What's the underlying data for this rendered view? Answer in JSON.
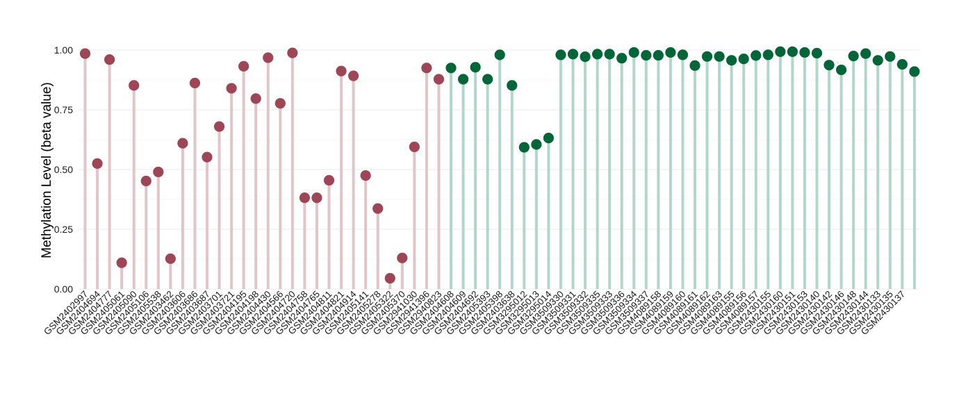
{
  "chart_data": {
    "type": "lollipop",
    "ylabel": "Methylation Level (beta value)",
    "ylim": [
      0,
      1
    ],
    "y_ticks": [
      "0.00",
      "0.25",
      "0.50",
      "0.75",
      "1.00"
    ],
    "y_tick_values": [
      0,
      0.25,
      0.5,
      0.75,
      1.0
    ],
    "grid": true,
    "colors": {
      "group_a_point": "#9e4656",
      "group_a_stem": "#e0c5ca",
      "group_b_point": "#036639",
      "group_b_stem": "#b3d6cb"
    },
    "points": [
      {
        "x": "GSM2402997",
        "y": 0.985,
        "group": "a"
      },
      {
        "x": "GSM2404694",
        "y": 0.525,
        "group": "a"
      },
      {
        "x": "GSM2404777",
        "y": 0.96,
        "group": "a"
      },
      {
        "x": "GSM2405061",
        "y": 0.11,
        "group": "a"
      },
      {
        "x": "GSM2405090",
        "y": 0.852,
        "group": "a"
      },
      {
        "x": "GSM2405106",
        "y": 0.452,
        "group": "a"
      },
      {
        "x": "GSM2405538",
        "y": 0.49,
        "group": "a"
      },
      {
        "x": "GSM2403462",
        "y": 0.127,
        "group": "a"
      },
      {
        "x": "GSM2403606",
        "y": 0.61,
        "group": "a"
      },
      {
        "x": "GSM2403686",
        "y": 0.862,
        "group": "a"
      },
      {
        "x": "GSM2403687",
        "y": 0.552,
        "group": "a"
      },
      {
        "x": "GSM2403701",
        "y": 0.68,
        "group": "a"
      },
      {
        "x": "GSM2403721",
        "y": 0.84,
        "group": "a"
      },
      {
        "x": "GSM2404195",
        "y": 0.932,
        "group": "a"
      },
      {
        "x": "GSM2404198",
        "y": 0.797,
        "group": "a"
      },
      {
        "x": "GSM2404430",
        "y": 0.968,
        "group": "a"
      },
      {
        "x": "GSM2404566",
        "y": 0.777,
        "group": "a"
      },
      {
        "x": "GSM2404720",
        "y": 0.988,
        "group": "a"
      },
      {
        "x": "GSM2404758",
        "y": 0.382,
        "group": "a"
      },
      {
        "x": "GSM2404765",
        "y": 0.382,
        "group": "a"
      },
      {
        "x": "GSM2404811",
        "y": 0.455,
        "group": "a"
      },
      {
        "x": "GSM2404821",
        "y": 0.912,
        "group": "a"
      },
      {
        "x": "GSM2404914",
        "y": 0.892,
        "group": "a"
      },
      {
        "x": "GSM2405141",
        "y": 0.475,
        "group": "a"
      },
      {
        "x": "GSM2405278",
        "y": 0.337,
        "group": "a"
      },
      {
        "x": "GSM2405322",
        "y": 0.045,
        "group": "a"
      },
      {
        "x": "GSM2405370",
        "y": 0.13,
        "group": "a"
      },
      {
        "x": "GSM2941030",
        "y": 0.595,
        "group": "a"
      },
      {
        "x": "GSM2941396",
        "y": 0.925,
        "group": "a"
      },
      {
        "x": "GSM2940823",
        "y": 0.878,
        "group": "a"
      },
      {
        "x": "GSM2404608",
        "y": 0.925,
        "group": "b"
      },
      {
        "x": "GSM2404609",
        "y": 0.878,
        "group": "b"
      },
      {
        "x": "GSM2404692",
        "y": 0.928,
        "group": "b"
      },
      {
        "x": "GSM2405393",
        "y": 0.878,
        "group": "b"
      },
      {
        "x": "GSM2405398",
        "y": 0.98,
        "group": "b"
      },
      {
        "x": "GSM2403638",
        "y": 0.852,
        "group": "b"
      },
      {
        "x": "GSM3295012",
        "y": 0.593,
        "group": "b"
      },
      {
        "x": "GSM3295013",
        "y": 0.605,
        "group": "b"
      },
      {
        "x": "GSM3295014",
        "y": 0.632,
        "group": "b"
      },
      {
        "x": "GSM3509330",
        "y": 0.98,
        "group": "b"
      },
      {
        "x": "GSM3509331",
        "y": 0.983,
        "group": "b"
      },
      {
        "x": "GSM3509332",
        "y": 0.972,
        "group": "b"
      },
      {
        "x": "GSM3509335",
        "y": 0.983,
        "group": "b"
      },
      {
        "x": "GSM3509333",
        "y": 0.983,
        "group": "b"
      },
      {
        "x": "GSM3509336",
        "y": 0.966,
        "group": "b"
      },
      {
        "x": "GSM3509334",
        "y": 0.99,
        "group": "b"
      },
      {
        "x": "GSM3509337",
        "y": 0.978,
        "group": "b"
      },
      {
        "x": "GSM4089158",
        "y": 0.978,
        "group": "b"
      },
      {
        "x": "GSM4089159",
        "y": 0.99,
        "group": "b"
      },
      {
        "x": "GSM4089160",
        "y": 0.98,
        "group": "b"
      },
      {
        "x": "GSM4089161",
        "y": 0.935,
        "group": "b"
      },
      {
        "x": "GSM4089162",
        "y": 0.973,
        "group": "b"
      },
      {
        "x": "GSM4089163",
        "y": 0.973,
        "group": "b"
      },
      {
        "x": "GSM4089155",
        "y": 0.957,
        "group": "b"
      },
      {
        "x": "GSM4089156",
        "y": 0.963,
        "group": "b"
      },
      {
        "x": "GSM4089157",
        "y": 0.977,
        "group": "b"
      },
      {
        "x": "GSM2430155",
        "y": 0.98,
        "group": "b"
      },
      {
        "x": "GSM2430160",
        "y": 0.993,
        "group": "b"
      },
      {
        "x": "GSM2430151",
        "y": 0.993,
        "group": "b"
      },
      {
        "x": "GSM2430153",
        "y": 0.99,
        "group": "b"
      },
      {
        "x": "GSM2430140",
        "y": 0.987,
        "group": "b"
      },
      {
        "x": "GSM2430142",
        "y": 0.937,
        "group": "b"
      },
      {
        "x": "GSM2430146",
        "y": 0.917,
        "group": "b"
      },
      {
        "x": "GSM2430148",
        "y": 0.975,
        "group": "b"
      },
      {
        "x": "GSM2430144",
        "y": 0.985,
        "group": "b"
      },
      {
        "x": "GSM2430133",
        "y": 0.957,
        "group": "b"
      },
      {
        "x": "GSM2430135",
        "y": 0.973,
        "group": "b"
      },
      {
        "x": "GSM2430137",
        "y": 0.94,
        "group": "b"
      },
      {
        "x": "",
        "y": 0.91,
        "group": "b"
      }
    ]
  }
}
